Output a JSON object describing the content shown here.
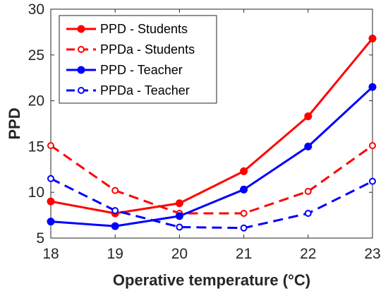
{
  "chart_data": {
    "type": "line",
    "xlabel": "Operative temperature (°C)",
    "ylabel": "PPD",
    "xlim": [
      18,
      23
    ],
    "ylim": [
      5,
      30
    ],
    "xticks": [
      18,
      19,
      20,
      21,
      22,
      23
    ],
    "yticks": [
      5,
      10,
      15,
      20,
      25,
      30
    ],
    "grid": false,
    "legend_position": "top-left",
    "series": [
      {
        "name": "PPD - Students",
        "color": "#ff0000",
        "line_style": "solid",
        "marker": "filled-circle",
        "x": [
          18,
          19,
          20,
          21,
          22,
          23
        ],
        "y": [
          9.0,
          7.7,
          8.8,
          12.3,
          18.3,
          26.8
        ]
      },
      {
        "name": "PPDa - Students",
        "color": "#ff0000",
        "line_style": "dashed",
        "marker": "open-circle",
        "x": [
          18,
          19,
          20,
          21,
          22,
          23
        ],
        "y": [
          15.1,
          10.2,
          7.7,
          7.7,
          10.1,
          15.1
        ]
      },
      {
        "name": "PPD - Teacher",
        "color": "#0000ff",
        "line_style": "solid",
        "marker": "filled-circle",
        "x": [
          18,
          19,
          20,
          21,
          22,
          23
        ],
        "y": [
          6.8,
          6.3,
          7.4,
          10.3,
          15.0,
          21.5
        ]
      },
      {
        "name": "PPDa - Teacher",
        "color": "#0000ff",
        "line_style": "dashed",
        "marker": "open-circle",
        "x": [
          18,
          19,
          20,
          21,
          22,
          23
        ],
        "y": [
          11.5,
          8.0,
          6.2,
          6.1,
          7.7,
          11.2
        ]
      }
    ]
  }
}
